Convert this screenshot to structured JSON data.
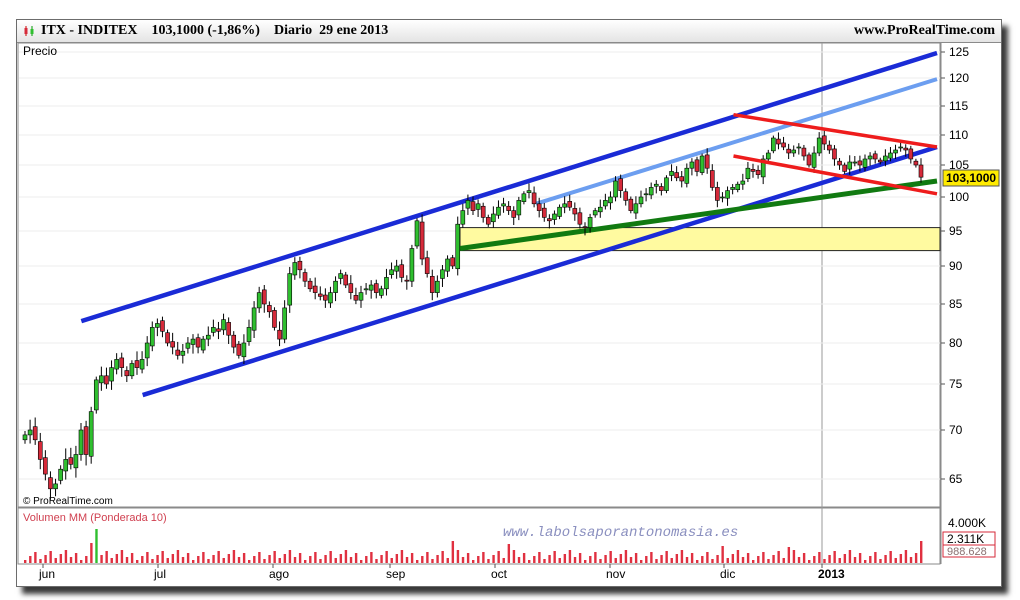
{
  "header": {
    "symbol": "ITX - INDITEX",
    "price_change": "103,1000 (-1,86%)",
    "period": "Diario",
    "date": "29 ene 2013",
    "site": "www.ProRealTime.com"
  },
  "price_panel": {
    "title": "Precio",
    "copyright": "© ProRealTime.com",
    "last_price": "103,1000"
  },
  "volume_panel": {
    "title": "Volumen MM (Ponderada 10)",
    "labels": [
      "4.000K",
      "2.311K",
      "988.628"
    ]
  },
  "watermark": "www.labolsaporantonomasia.es",
  "colors": {
    "bull": "#2fbf2f",
    "bear": "#d62a3a",
    "channel": "#1a2bd6",
    "channel_light": "#6c9ef0",
    "downtrend": "#ee1c1c",
    "support": "#117a11",
    "zone_fill": "#fffaa0",
    "volume": "#e03040",
    "price_tag": "#ffeb00"
  },
  "chart_data": {
    "type": "candlestick",
    "title": "ITX - INDITEX",
    "ylim": [
      62,
      127
    ],
    "y_ticks": [
      65,
      70,
      75,
      80,
      85,
      90,
      95,
      100,
      105,
      110,
      115,
      120,
      125
    ],
    "x_ticks": [
      "jun",
      "jul",
      "ago",
      "sep",
      "oct",
      "nov",
      "dic",
      "2013"
    ],
    "last_value": 103.1,
    "support_zone": [
      92.2,
      95.5
    ],
    "trendlines": [
      {
        "name": "upper-channel",
        "from": [
          "2012-06-11",
          82.8
        ],
        "to": [
          "2013-02-01",
          124.8
        ]
      },
      {
        "name": "lower-channel",
        "from": [
          "2012-06-27",
          73.8
        ],
        "to": [
          "2013-02-01",
          108.0
        ]
      },
      {
        "name": "inner-channel",
        "from": [
          "2012-10-12",
          99.0
        ],
        "to": [
          "2013-02-01",
          119.8
        ]
      },
      {
        "name": "support-line",
        "from": [
          "2012-09-21",
          92.5
        ],
        "to": [
          "2013-02-01",
          102.5
        ]
      },
      {
        "name": "downtrend-top",
        "from": [
          "2012-12-04",
          113.5
        ],
        "to": [
          "2013-02-01",
          108.0
        ]
      },
      {
        "name": "downtrend-bottom",
        "from": [
          "2012-12-04",
          106.5
        ],
        "to": [
          "2013-02-01",
          100.5
        ]
      }
    ],
    "closes": [
      69.5,
      70.0,
      69.0,
      67.0,
      65.5,
      64.0,
      64.5,
      66.0,
      67.0,
      66.5,
      67.5,
      70.0,
      67.5,
      72.0,
      75.5,
      76.0,
      75.0,
      77.0,
      78.0,
      77.0,
      76.0,
      77.5,
      77.0,
      78.0,
      80.0,
      82.0,
      82.5,
      81.5,
      80.0,
      79.5,
      78.5,
      79.0,
      80.0,
      80.5,
      79.5,
      80.5,
      81.0,
      82.0,
      81.5,
      83.0,
      81.0,
      79.5,
      78.5,
      80.0,
      82.0,
      84.5,
      86.5,
      85.0,
      84.0,
      82.0,
      80.5,
      84.5,
      89.0,
      90.5,
      89.5,
      88.0,
      87.0,
      86.5,
      86.0,
      85.5,
      86.5,
      88.0,
      89.0,
      87.5,
      86.5,
      85.5,
      86.5,
      87.0,
      87.5,
      86.5,
      87.0,
      88.5,
      89.5,
      90.0,
      88.5,
      88.0,
      92.5,
      96.5,
      91.0,
      89.0,
      86.5,
      88.0,
      89.5,
      91.0,
      90.0,
      96.0,
      98.0,
      99.5,
      98.0,
      99.0,
      97.0,
      96.0,
      97.5,
      98.5,
      99.0,
      98.0,
      97.0,
      99.5,
      100.5,
      101.0,
      99.0,
      98.0,
      97.0,
      96.5,
      97.5,
      98.5,
      99.0,
      98.5,
      97.5,
      96.0,
      95.5,
      97.0,
      98.0,
      98.5,
      99.5,
      100.0,
      102.5,
      101.0,
      99.5,
      98.0,
      99.0,
      100.0,
      100.5,
      101.5,
      102.0,
      101.0,
      103.0,
      104.0,
      103.0,
      102.5,
      104.5,
      105.5,
      104.0,
      106.5,
      104.5,
      101.5,
      99.5,
      100.0,
      101.0,
      101.5,
      102.0,
      102.5,
      104.5,
      104.0,
      103.5,
      106.0,
      107.0,
      109.5,
      108.5,
      108.0,
      107.0,
      107.5,
      108.0,
      106.5,
      105.0,
      107.0,
      109.5,
      108.5,
      107.5,
      106.0,
      105.0,
      104.0,
      105.5,
      105.5,
      105.0,
      106.0,
      106.5,
      106.0,
      105.5,
      106.5,
      107.0,
      107.5,
      108.0,
      107.5,
      106.0,
      105.0,
      103.1
    ]
  }
}
